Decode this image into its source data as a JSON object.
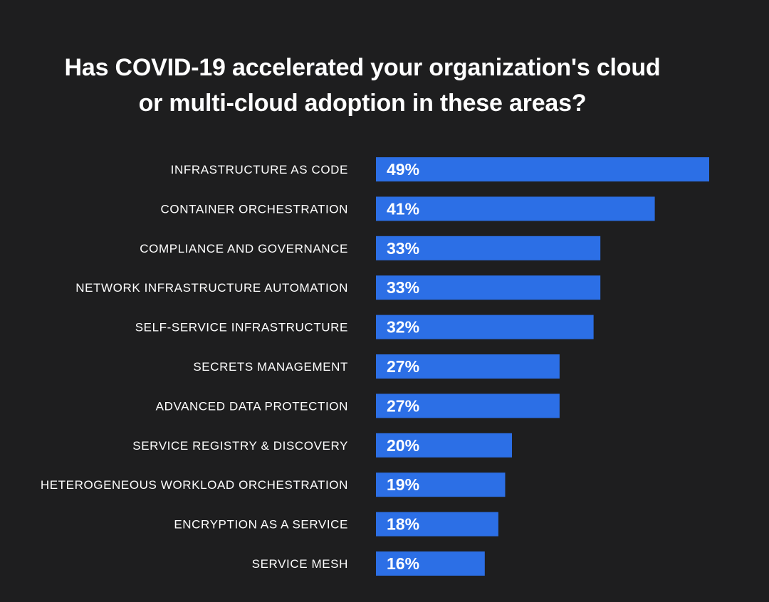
{
  "title_lines": [
    "Has COVID-19 accelerated your organization's cloud",
    "or multi-cloud adoption in these areas?"
  ],
  "colors": {
    "background": "#1e1e1f",
    "bar": "#2c6fe6",
    "text": "#ffffff"
  },
  "chart_data": {
    "type": "bar",
    "orientation": "horizontal",
    "title": "Has COVID-19 accelerated your organization's cloud or multi-cloud adoption in these areas?",
    "categories": [
      "INFRASTRUCTURE AS CODE",
      "CONTAINER ORCHESTRATION",
      "COMPLIANCE AND GOVERNANCE",
      "NETWORK INFRASTRUCTURE AUTOMATION",
      "SELF-SERVICE INFRASTRUCTURE",
      "SECRETS MANAGEMENT",
      "ADVANCED DATA PROTECTION",
      "SERVICE REGISTRY & DISCOVERY",
      "HETEROGENEOUS WORKLOAD ORCHESTRATION",
      "ENCRYPTION AS A SERVICE",
      "SERVICE MESH"
    ],
    "values": [
      49,
      41,
      33,
      33,
      32,
      27,
      27,
      20,
      19,
      18,
      16
    ],
    "value_labels": [
      "49%",
      "41%",
      "33%",
      "33%",
      "32%",
      "27%",
      "27%",
      "20%",
      "19%",
      "18%",
      "16%"
    ],
    "unit": "%",
    "xlabel": "",
    "ylabel": "",
    "grid": false,
    "legend": "none"
  }
}
